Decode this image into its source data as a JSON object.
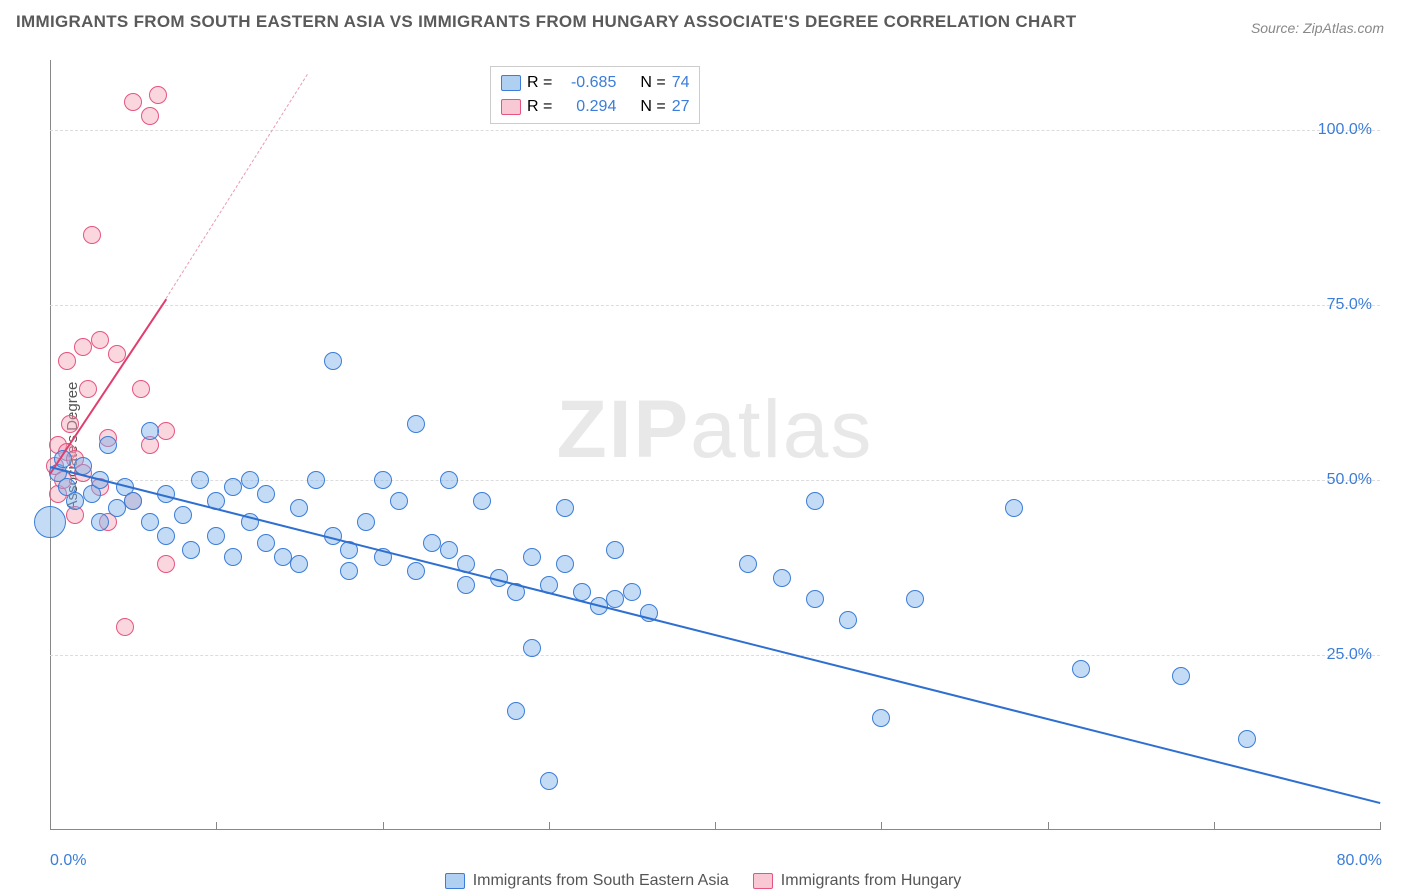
{
  "title": "IMMIGRANTS FROM SOUTH EASTERN ASIA VS IMMIGRANTS FROM HUNGARY ASSOCIATE'S DEGREE CORRELATION CHART",
  "source": "Source: ZipAtlas.com",
  "ylabel": "Associate's Degree",
  "watermark_bold": "ZIP",
  "watermark_rest": "atlas",
  "chart": {
    "type": "scatter",
    "xlim": [
      0,
      80
    ],
    "ylim": [
      0,
      110
    ],
    "ytick_values": [
      25,
      50,
      75,
      100
    ],
    "ytick_labels": [
      "25.0%",
      "50.0%",
      "75.0%",
      "100.0%"
    ],
    "xtick_values": [
      0,
      10,
      20,
      30,
      40,
      50,
      60,
      70,
      80
    ],
    "xtick_label_left": "0.0%",
    "xtick_label_right": "80.0%",
    "background_color": "#ffffff",
    "grid_color": "#dcdcdc",
    "axis_color": "#888888",
    "series": {
      "blue": {
        "label": "Immigrants from South Eastern Asia",
        "fill": "rgba(122,176,232,0.45)",
        "stroke": "#3b7dd8",
        "marker_radius": 9,
        "R": "-0.685",
        "N": "74",
        "trend": {
          "x1": 0,
          "y1": 52,
          "x2": 80,
          "y2": 4,
          "color": "#2f6fd0",
          "width": 2,
          "dash": false
        },
        "points": [
          {
            "x": 0,
            "y": 44,
            "r": 16
          },
          {
            "x": 0.5,
            "y": 51
          },
          {
            "x": 0.8,
            "y": 53
          },
          {
            "x": 1,
            "y": 49
          },
          {
            "x": 1.5,
            "y": 47
          },
          {
            "x": 2,
            "y": 52
          },
          {
            "x": 2.5,
            "y": 48
          },
          {
            "x": 3,
            "y": 50
          },
          {
            "x": 3,
            "y": 44
          },
          {
            "x": 3.5,
            "y": 55
          },
          {
            "x": 4,
            "y": 46
          },
          {
            "x": 4.5,
            "y": 49
          },
          {
            "x": 5,
            "y": 47
          },
          {
            "x": 6,
            "y": 44
          },
          {
            "x": 6,
            "y": 57
          },
          {
            "x": 7,
            "y": 42
          },
          {
            "x": 7,
            "y": 48
          },
          {
            "x": 8,
            "y": 45
          },
          {
            "x": 8.5,
            "y": 40
          },
          {
            "x": 9,
            "y": 50
          },
          {
            "x": 10,
            "y": 47
          },
          {
            "x": 10,
            "y": 42
          },
          {
            "x": 11,
            "y": 49
          },
          {
            "x": 11,
            "y": 39
          },
          {
            "x": 12,
            "y": 44
          },
          {
            "x": 12,
            "y": 50
          },
          {
            "x": 13,
            "y": 41
          },
          {
            "x": 13,
            "y": 48
          },
          {
            "x": 14,
            "y": 39
          },
          {
            "x": 15,
            "y": 46
          },
          {
            "x": 15,
            "y": 38
          },
          {
            "x": 16,
            "y": 50
          },
          {
            "x": 17,
            "y": 42
          },
          {
            "x": 17,
            "y": 67
          },
          {
            "x": 18,
            "y": 40
          },
          {
            "x": 18,
            "y": 37
          },
          {
            "x": 19,
            "y": 44
          },
          {
            "x": 20,
            "y": 39
          },
          {
            "x": 20,
            "y": 50
          },
          {
            "x": 21,
            "y": 47
          },
          {
            "x": 22,
            "y": 37
          },
          {
            "x": 22,
            "y": 58
          },
          {
            "x": 23,
            "y": 41
          },
          {
            "x": 24,
            "y": 40
          },
          {
            "x": 24,
            "y": 50
          },
          {
            "x": 25,
            "y": 35
          },
          {
            "x": 25,
            "y": 38
          },
          {
            "x": 26,
            "y": 47
          },
          {
            "x": 27,
            "y": 36
          },
          {
            "x": 28,
            "y": 17
          },
          {
            "x": 28,
            "y": 34
          },
          {
            "x": 29,
            "y": 39
          },
          {
            "x": 29,
            "y": 26
          },
          {
            "x": 30,
            "y": 35
          },
          {
            "x": 30,
            "y": 7
          },
          {
            "x": 31,
            "y": 38
          },
          {
            "x": 31,
            "y": 46
          },
          {
            "x": 32,
            "y": 34
          },
          {
            "x": 33,
            "y": 32
          },
          {
            "x": 34,
            "y": 33
          },
          {
            "x": 34,
            "y": 40
          },
          {
            "x": 35,
            "y": 34
          },
          {
            "x": 36,
            "y": 31
          },
          {
            "x": 42,
            "y": 38
          },
          {
            "x": 44,
            "y": 36
          },
          {
            "x": 46,
            "y": 33
          },
          {
            "x": 46,
            "y": 47
          },
          {
            "x": 48,
            "y": 30
          },
          {
            "x": 50,
            "y": 16
          },
          {
            "x": 52,
            "y": 33
          },
          {
            "x": 58,
            "y": 46
          },
          {
            "x": 62,
            "y": 23
          },
          {
            "x": 68,
            "y": 22
          },
          {
            "x": 72,
            "y": 13
          }
        ]
      },
      "pink": {
        "label": "Immigrants from Hungary",
        "fill": "rgba(244,164,184,0.45)",
        "stroke": "#e75480",
        "marker_radius": 9,
        "R": "0.294",
        "N": "27",
        "trend": {
          "x1": 0,
          "y1": 51,
          "x2": 7,
          "y2": 76,
          "color": "#e13d6d",
          "width": 2,
          "dash": false
        },
        "trend_dash": {
          "x1": 7,
          "y1": 76,
          "x2": 15.5,
          "y2": 108,
          "color": "#e99bb0",
          "width": 1.5,
          "dash": true
        },
        "points": [
          {
            "x": 0.3,
            "y": 52
          },
          {
            "x": 0.5,
            "y": 48
          },
          {
            "x": 0.5,
            "y": 55
          },
          {
            "x": 0.8,
            "y": 50
          },
          {
            "x": 1,
            "y": 54
          },
          {
            "x": 1,
            "y": 67
          },
          {
            "x": 1.2,
            "y": 58
          },
          {
            "x": 1.5,
            "y": 45
          },
          {
            "x": 1.5,
            "y": 53
          },
          {
            "x": 2,
            "y": 51
          },
          {
            "x": 2,
            "y": 69
          },
          {
            "x": 2.3,
            "y": 63
          },
          {
            "x": 2.5,
            "y": 85
          },
          {
            "x": 3,
            "y": 70
          },
          {
            "x": 3,
            "y": 49
          },
          {
            "x": 3.5,
            "y": 44
          },
          {
            "x": 3.5,
            "y": 56
          },
          {
            "x": 4,
            "y": 68
          },
          {
            "x": 4.5,
            "y": 29
          },
          {
            "x": 5,
            "y": 104
          },
          {
            "x": 5,
            "y": 47
          },
          {
            "x": 5.5,
            "y": 63
          },
          {
            "x": 6,
            "y": 102
          },
          {
            "x": 6,
            "y": 55
          },
          {
            "x": 6.5,
            "y": 105
          },
          {
            "x": 7,
            "y": 38
          },
          {
            "x": 7,
            "y": 57
          }
        ]
      }
    }
  },
  "stats_legend": {
    "rows": [
      {
        "swatch": "blue",
        "R_label": "R =",
        "R": "-0.685",
        "N_label": "N =",
        "N": "74"
      },
      {
        "swatch": "pink",
        "R_label": "R =",
        "R": "0.294",
        "N_label": "N =",
        "N": "27"
      }
    ]
  },
  "bottom_legend": {
    "items": [
      {
        "swatch": "blue",
        "label": "Immigrants from South Eastern Asia"
      },
      {
        "swatch": "pink",
        "label": "Immigrants from Hungary"
      }
    ]
  }
}
